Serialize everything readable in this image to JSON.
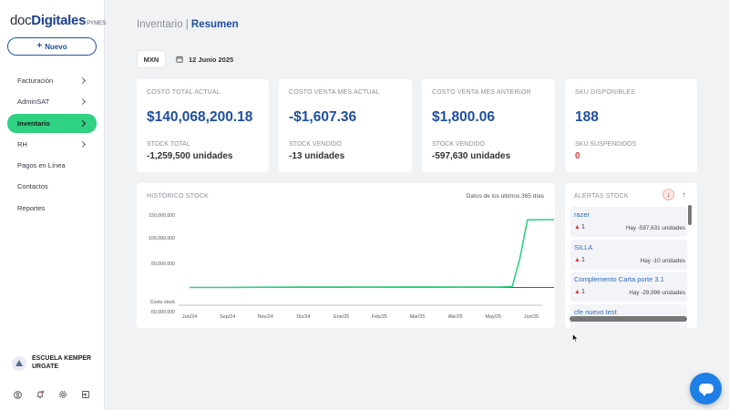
{
  "brand": {
    "doc": "doc",
    "digitales": "Digitales",
    "pymes": "PYMES"
  },
  "sidebar": {
    "new_label": "Nuevo",
    "items": [
      {
        "label": "Facturación",
        "chevron": true,
        "active": false
      },
      {
        "label": "AdminSAT",
        "chevron": true,
        "active": false
      },
      {
        "label": "Inventario",
        "chevron": true,
        "active": true
      },
      {
        "label": "RH",
        "chevron": true,
        "active": false
      },
      {
        "label": "Pagos en Línea",
        "chevron": false,
        "active": false
      },
      {
        "label": "Contactos",
        "chevron": false,
        "active": false
      },
      {
        "label": "Reportes",
        "chevron": false,
        "active": false
      }
    ],
    "org_name": "ESCUELA KEMPER URGATE",
    "bottom_icons": [
      "user-icon",
      "bell-icon",
      "gear-icon",
      "logout-icon"
    ]
  },
  "header": {
    "section": "Inventario",
    "separator": "|",
    "page": "Resumen"
  },
  "filters": {
    "currency": "MXN",
    "date": "12 Junio 2025"
  },
  "kpis": [
    {
      "label": "COSTO TOTAL ACTUAL",
      "value": "$140,068,200.18",
      "sub_label": "STOCK TOTAL",
      "sub_value": "-1,259,500 unidades"
    },
    {
      "label": "COSTO VENTA MES ACTUAL",
      "value": "-$1,607.36",
      "sub_label": "STOCK VENDIDO",
      "sub_value": "-13 unidades"
    },
    {
      "label": "COSTO VENTA MES ANTERIOR",
      "value": "$1,800.06",
      "sub_label": "STOCK VENDIDO",
      "sub_value": "-597,630 unidades"
    },
    {
      "label": "SKU DISPONIBLES",
      "value": "188",
      "sub_label": "SKU SUSPENDIDOS",
      "sub_value": "0"
    }
  ],
  "history": {
    "label": "HISTÓRICO STOCK",
    "note": "Datos de los últimos 365 días"
  },
  "chart_data": {
    "type": "line",
    "title": "HISTÓRICO STOCK",
    "xlabel": "",
    "ylabel": "",
    "x_ticks": [
      "Jun/24",
      "Sep/24",
      "Nov/24",
      "Dic/24",
      "Ene/25",
      "Feb/25",
      "Mar/25",
      "Abr/25",
      "May/25",
      "Jun/25"
    ],
    "y_ticks": [
      "150,000,000",
      "100,000,000",
      "50,000,000",
      "Costo stock",
      "-50,000,000"
    ],
    "ylim": [
      -50000000,
      150000000
    ],
    "grid": false,
    "series": [
      {
        "color": "#2fd182",
        "x": [
          0,
          1,
          2,
          3,
          4,
          5,
          6,
          7,
          8.2,
          8.5,
          8.7,
          8.9,
          9.6
        ],
        "values": [
          0,
          0,
          500000,
          1000000,
          1000000,
          800000,
          1200000,
          800000,
          1000000,
          2000000,
          60000000,
          140000000,
          140500000
        ]
      },
      {
        "color": "#222222",
        "x": [
          0,
          9.6
        ],
        "values": [
          0,
          0
        ]
      }
    ]
  },
  "alerts": {
    "label": "ALERTAS STOCK",
    "items": [
      {
        "name": "razer",
        "count": "1",
        "stock": "Hay -597,631 unidades"
      },
      {
        "name": "SILLA",
        "count": "1",
        "stock": "Hay -10 unidades"
      },
      {
        "name": "Complemento Carta porte 3.1",
        "count": "1",
        "stock": "Hay -29,996 unidades"
      },
      {
        "name": "cfe nuevo test",
        "count": "",
        "stock": ""
      }
    ]
  },
  "colors": {
    "accent": "#2fd182",
    "brand": "#1f4fa0",
    "alert": "#d93b3b"
  }
}
